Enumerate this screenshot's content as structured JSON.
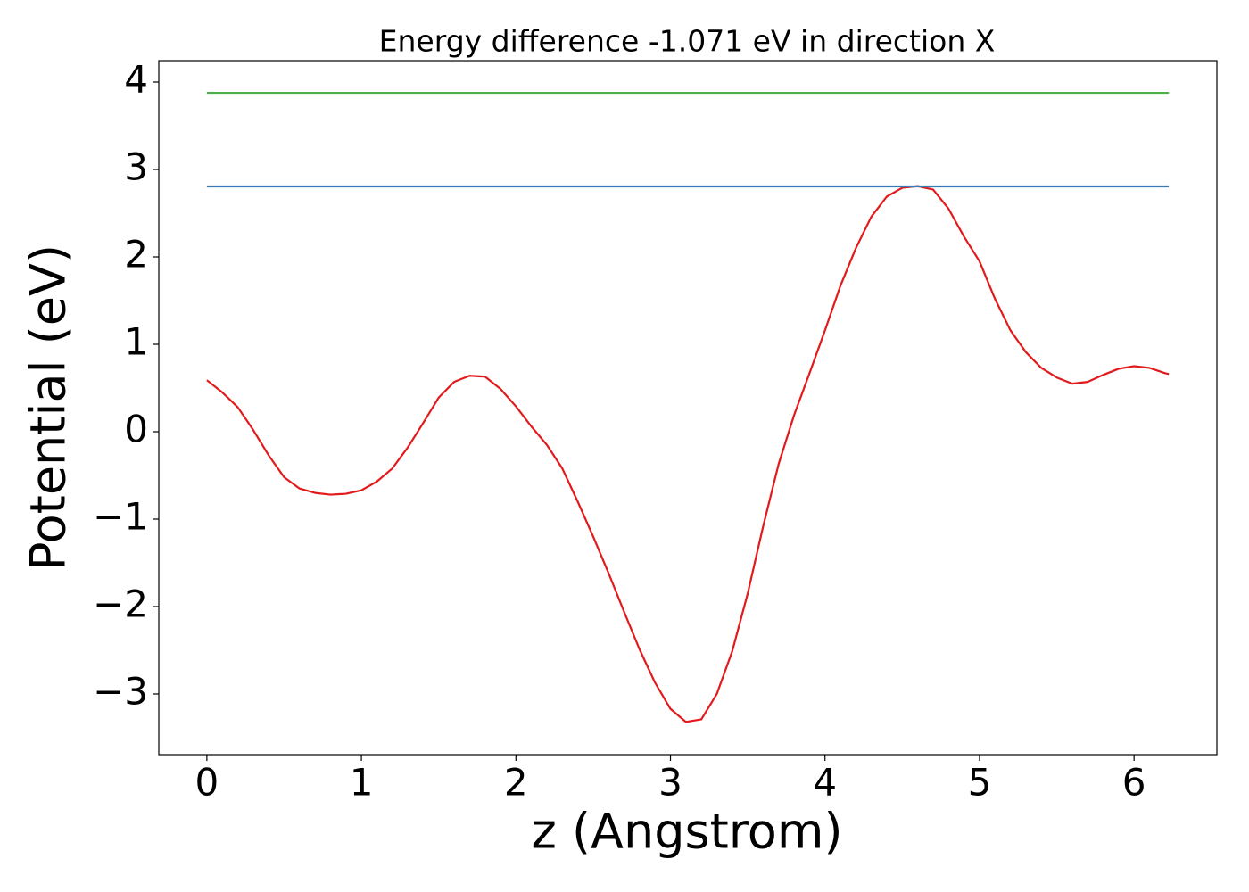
{
  "chart_data": {
    "type": "line",
    "title": "Energy difference -1.071 eV in direction X",
    "x_label": "z (Angstrom)",
    "y_label": "Potential (eV)",
    "xlim": [
      -0.311,
      6.536
    ],
    "ylim": [
      -3.694,
      4.245
    ],
    "xticks": [
      0,
      1,
      2,
      3,
      4,
      5,
      6
    ],
    "yticks": [
      {
        "value": -3,
        "label": "−3"
      },
      {
        "value": -2,
        "label": "−2"
      },
      {
        "value": -1,
        "label": "−1"
      },
      0,
      1,
      2,
      3,
      4
    ],
    "grid": false,
    "series": [
      {
        "color": "#e31a1c",
        "x": [
          0,
          0.1,
          0.2,
          0.3,
          0.4,
          0.5,
          0.6,
          0.7,
          0.8,
          0.9,
          1.0,
          1.1,
          1.2,
          1.3,
          1.4,
          1.5,
          1.6,
          1.7,
          1.8,
          1.9,
          2.0,
          2.1,
          2.2,
          2.3,
          2.4,
          2.5,
          2.6,
          2.7,
          2.8,
          2.9,
          3.0,
          3.1,
          3.2,
          3.3,
          3.4,
          3.5,
          3.6,
          3.7,
          3.8,
          3.9,
          4.0,
          4.1,
          4.2,
          4.3,
          4.4,
          4.5,
          4.6,
          4.7,
          4.8,
          4.9,
          5.0,
          5.1,
          5.2,
          5.3,
          5.4,
          5.5,
          5.6,
          5.7,
          5.8,
          5.9,
          6.0,
          6.1,
          6.2,
          6.225
        ],
        "values": [
          0.59,
          0.45,
          0.28,
          0.02,
          -0.27,
          -0.52,
          -0.65,
          -0.7,
          -0.72,
          -0.71,
          -0.67,
          -0.57,
          -0.42,
          -0.18,
          0.1,
          0.39,
          0.57,
          0.64,
          0.63,
          0.49,
          0.29,
          0.06,
          -0.15,
          -0.42,
          -0.8,
          -1.2,
          -1.62,
          -2.06,
          -2.49,
          -2.87,
          -3.17,
          -3.32,
          -3.29,
          -3.0,
          -2.51,
          -1.85,
          -1.08,
          -0.37,
          0.19,
          0.67,
          1.16,
          1.67,
          2.1,
          2.46,
          2.69,
          2.79,
          2.81,
          2.77,
          2.55,
          2.23,
          1.95,
          1.52,
          1.16,
          0.91,
          0.73,
          0.62,
          0.55,
          0.57,
          0.65,
          0.72,
          0.75,
          0.73,
          0.67,
          0.66
        ]
      },
      {
        "color": "#377eb8",
        "x": [
          0,
          6.225
        ],
        "values": [
          2.806,
          2.806
        ]
      },
      {
        "color": "#4daf4a",
        "x": [
          0,
          6.225
        ],
        "values": [
          3.877,
          3.877
        ]
      }
    ]
  }
}
